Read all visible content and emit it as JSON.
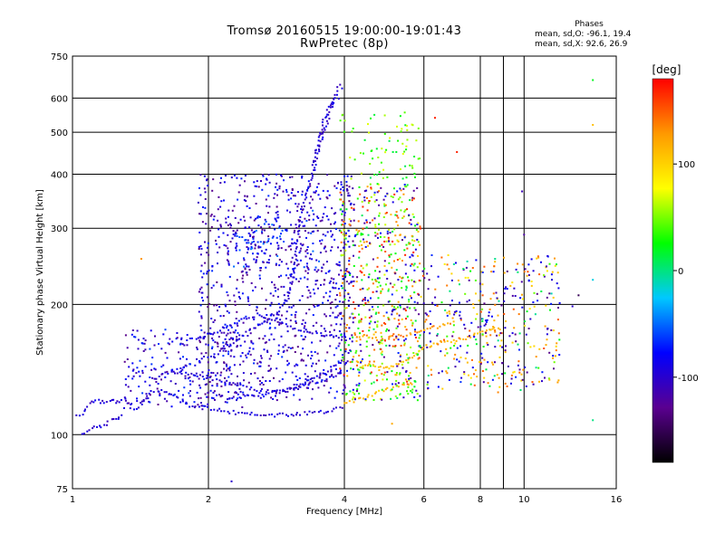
{
  "header": {
    "title": "Tromsø 20160515 19:00:00-19:01:43",
    "subtitle": "RwPretec (8p)"
  },
  "stats": {
    "heading": "Phases",
    "line_o": "mean, sd,O: -96.1, 19.4",
    "line_x": "mean, sd,X:  92.6, 26.9"
  },
  "chart_data": {
    "type": "scatter",
    "x_scale": "log",
    "y_scale": "log",
    "xlabel": "Frequency [MHz]",
    "ylabel": "Stationary phase Virtual Height [km]",
    "xlim": [
      1,
      16
    ],
    "ylim": [
      75,
      750
    ],
    "x_ticks": [
      1,
      2,
      4,
      6,
      8,
      10,
      16
    ],
    "x_tick_labels": [
      "1",
      "2",
      "4",
      "6",
      "8",
      "10",
      "16"
    ],
    "x_minor_gridlines": [
      9
    ],
    "y_ticks": [
      75,
      100,
      200,
      300,
      400,
      500,
      600,
      750
    ],
    "y_tick_labels": [
      "75",
      "100",
      "200",
      "300",
      "400",
      "500",
      "600",
      "750"
    ],
    "grid": true,
    "colorbar": {
      "label": "[deg]",
      "range": [
        -180,
        180
      ],
      "ticks": [
        100,
        0,
        -100
      ],
      "tick_labels": [
        "100",
        "0",
        "-100"
      ],
      "colors": [
        "#000000",
        "#5a0090",
        "#0000ff",
        "#00c8ff",
        "#00ff00",
        "#ffff00",
        "#ff9900",
        "#ff0000"
      ]
    },
    "traces": [
      {
        "name": "",
        "phase": -96,
        "points": [
          [
            1.02,
            110
          ],
          [
            1.05,
            112
          ],
          [
            1.08,
            116
          ],
          [
            1.1,
            119
          ],
          [
            1.14,
            120
          ],
          [
            1.18,
            118
          ],
          [
            1.22,
            121
          ],
          [
            1.25,
            118
          ],
          [
            1.3,
            122
          ],
          [
            1.35,
            115
          ],
          [
            1.4,
            116
          ],
          [
            1.45,
            122
          ],
          [
            1.5,
            125
          ],
          [
            1.6,
            126
          ],
          [
            1.7,
            122
          ],
          [
            1.8,
            117
          ],
          [
            1.9,
            116
          ],
          [
            2.0,
            115
          ],
          [
            2.2,
            113
          ],
          [
            2.4,
            112
          ],
          [
            2.6,
            111
          ],
          [
            2.8,
            111
          ],
          [
            3.0,
            111
          ],
          [
            3.2,
            112
          ],
          [
            3.4,
            112
          ],
          [
            3.6,
            113
          ],
          [
            3.8,
            114
          ],
          [
            4.0,
            116
          ]
        ]
      },
      {
        "name": "",
        "phase": -100,
        "points": [
          [
            1.05,
            101
          ],
          [
            1.08,
            102
          ],
          [
            1.12,
            104
          ],
          [
            1.15,
            104
          ],
          [
            1.2,
            107
          ],
          [
            1.24,
            108
          ],
          [
            1.26,
            109
          ],
          [
            1.3,
            111
          ]
        ]
      },
      {
        "name": "",
        "phase": -95,
        "points": [
          [
            1.5,
            134
          ],
          [
            1.6,
            138
          ],
          [
            1.7,
            140
          ],
          [
            1.8,
            139
          ],
          [
            2.0,
            136
          ],
          [
            2.2,
            132
          ],
          [
            2.4,
            129
          ],
          [
            2.6,
            127
          ],
          [
            2.8,
            126
          ],
          [
            3.0,
            126
          ],
          [
            3.2,
            128
          ],
          [
            3.4,
            132
          ],
          [
            3.6,
            134
          ],
          [
            3.8,
            137
          ],
          [
            4.0,
            139
          ]
        ]
      },
      {
        "name": "",
        "phase": -92,
        "points": [
          [
            2.2,
            120
          ],
          [
            2.4,
            122
          ],
          [
            2.6,
            124
          ],
          [
            2.8,
            125
          ],
          [
            3.0,
            127
          ],
          [
            3.2,
            130
          ],
          [
            3.4,
            134
          ],
          [
            3.6,
            138
          ],
          [
            3.8,
            143
          ],
          [
            4.0,
            150
          ]
        ]
      },
      {
        "name": "",
        "phase": -97,
        "points": [
          [
            2.0,
            150
          ],
          [
            2.2,
            160
          ],
          [
            2.4,
            170
          ],
          [
            2.6,
            180
          ],
          [
            2.8,
            190
          ],
          [
            3.0,
            205
          ],
          [
            3.1,
            240
          ],
          [
            3.15,
            280
          ],
          [
            3.2,
            320
          ],
          [
            3.3,
            360
          ],
          [
            3.4,
            400
          ],
          [
            3.5,
            450
          ],
          [
            3.6,
            500
          ],
          [
            3.7,
            550
          ],
          [
            3.8,
            600
          ],
          [
            3.9,
            640
          ],
          [
            4.0,
            630
          ]
        ]
      },
      {
        "name": "",
        "phase": -98,
        "points": [
          [
            3.4,
            420
          ],
          [
            3.5,
            470
          ],
          [
            3.6,
            530
          ],
          [
            3.7,
            570
          ],
          [
            3.8,
            590
          ],
          [
            3.9,
            610
          ]
        ]
      },
      {
        "name": "",
        "phase": -60,
        "points": [
          [
            2.3,
            290
          ],
          [
            2.4,
            283
          ],
          [
            2.5,
            279
          ],
          [
            2.6,
            277
          ],
          [
            2.7,
            279
          ],
          [
            2.8,
            285
          ],
          [
            2.9,
            292
          ],
          [
            3.0,
            300
          ]
        ]
      },
      {
        "name": "",
        "phase": -90,
        "points": [
          [
            1.8,
            165
          ],
          [
            2.0,
            170
          ],
          [
            2.2,
            178
          ],
          [
            2.4,
            185
          ],
          [
            2.6,
            190
          ],
          [
            2.8,
            185
          ],
          [
            3.0,
            178
          ],
          [
            3.2,
            175
          ],
          [
            3.4,
            172
          ],
          [
            3.6,
            170
          ],
          [
            3.8,
            168
          ],
          [
            4.0,
            167
          ],
          [
            4.2,
            165
          ]
        ]
      },
      {
        "name": "",
        "phase": 110,
        "points": [
          [
            4.0,
            118
          ],
          [
            4.3,
            121
          ],
          [
            4.6,
            124
          ],
          [
            5.0,
            127
          ],
          [
            5.3,
            129
          ],
          [
            5.6,
            131
          ],
          [
            5.8,
            133
          ]
        ]
      },
      {
        "name": "",
        "phase": 115,
        "points": [
          [
            4.2,
            150
          ],
          [
            4.5,
            145
          ],
          [
            4.8,
            142
          ],
          [
            5.0,
            143
          ],
          [
            5.3,
            145
          ],
          [
            5.6,
            150
          ],
          [
            5.8,
            155
          ],
          [
            6.0,
            160
          ],
          [
            6.5,
            163
          ],
          [
            7.0,
            165
          ],
          [
            7.5,
            168
          ],
          [
            8.0,
            172
          ],
          [
            8.5,
            175
          ],
          [
            9.0,
            177
          ]
        ]
      },
      {
        "name": "",
        "phase": 130,
        "points": [
          [
            4.2,
            170
          ],
          [
            4.5,
            168
          ],
          [
            4.8,
            165
          ],
          [
            5.0,
            167
          ],
          [
            5.5,
            170
          ],
          [
            6.0,
            175
          ],
          [
            6.5,
            178
          ],
          [
            7.0,
            180
          ]
        ]
      }
    ],
    "scatter": [
      {
        "x_range": [
          1.9,
          4.2
        ],
        "y_range": [
          120,
          400
        ],
        "phase": -100,
        "count": 900
      },
      {
        "x_range": [
          1.3,
          2.4
        ],
        "y_range": [
          115,
          175
        ],
        "phase": -95,
        "count": 220
      },
      {
        "x_range": [
          2.2,
          3.6
        ],
        "y_range": [
          240,
          330
        ],
        "phase": -80,
        "count": 90
      },
      {
        "x_range": [
          3.9,
          5.9
        ],
        "y_range": [
          120,
          560
        ],
        "phase": 40,
        "count": 350
      },
      {
        "x_range": [
          3.9,
          5.9
        ],
        "y_range": [
          130,
          380
        ],
        "phase": 140,
        "count": 200
      },
      {
        "x_range": [
          3.9,
          5.9
        ],
        "y_range": [
          120,
          380
        ],
        "phase": -100,
        "count": 160
      },
      {
        "x_range": [
          5.8,
          12.0
        ],
        "y_range": [
          125,
          260
        ],
        "phase": 120,
        "count": 170
      },
      {
        "x_range": [
          5.8,
          12.0
        ],
        "y_range": [
          125,
          260
        ],
        "phase": -100,
        "count": 170
      },
      {
        "x_range": [
          5.8,
          12.0
        ],
        "y_range": [
          125,
          260
        ],
        "phase": 20,
        "count": 60
      }
    ],
    "outliers": [
      {
        "x": 1.42,
        "y": 255,
        "phase": 130
      },
      {
        "x": 2.25,
        "y": 78,
        "phase": -100
      },
      {
        "x": 6.35,
        "y": 540,
        "phase": 170
      },
      {
        "x": 7.1,
        "y": 450,
        "phase": 170
      },
      {
        "x": 9.9,
        "y": 365,
        "phase": -110
      },
      {
        "x": 10.0,
        "y": 290,
        "phase": -120
      },
      {
        "x": 14.2,
        "y": 660,
        "phase": 20
      },
      {
        "x": 14.2,
        "y": 520,
        "phase": 110
      },
      {
        "x": 14.2,
        "y": 228,
        "phase": -20
      },
      {
        "x": 14.2,
        "y": 108,
        "phase": 0
      },
      {
        "x": 12.8,
        "y": 198,
        "phase": -100
      },
      {
        "x": 5.1,
        "y": 106,
        "phase": 120
      },
      {
        "x": 13.2,
        "y": 210,
        "phase": -150
      }
    ]
  }
}
